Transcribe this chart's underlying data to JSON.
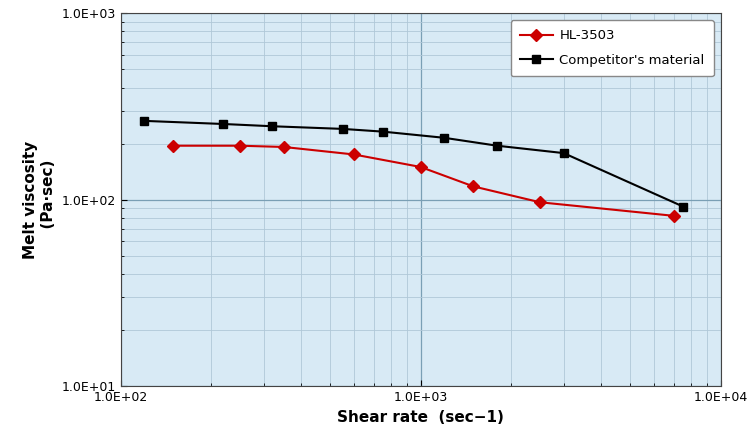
{
  "hl3503_x": [
    150,
    250,
    350,
    600,
    1000,
    1500,
    2500,
    7000
  ],
  "hl3503_y": [
    195,
    195,
    192,
    175,
    150,
    118,
    97,
    82
  ],
  "competitor_x": [
    120,
    220,
    320,
    550,
    750,
    1200,
    1800,
    3000,
    7500
  ],
  "competitor_y": [
    265,
    255,
    248,
    240,
    232,
    215,
    195,
    178,
    92
  ],
  "hl3503_color": "#cc0000",
  "competitor_color": "#000000",
  "background_color": "#d8eaf5",
  "outer_background": "#ffffff",
  "grid_minor_color": "#b0c8d8",
  "grid_major_color": "#7a9fb5",
  "xlabel_main": "Shear rate",
  "xlabel_unit": "  (sec−1)",
  "ylabel_main": "Melt viscosity",
  "ylabel_unit": "  (Pa·sec)",
  "xlim": [
    100,
    10000
  ],
  "ylim": [
    10,
    1000
  ],
  "legend_hl": "HL-3503",
  "legend_comp": "Competitor's material",
  "tick_label_size": 9,
  "axis_label_size": 11
}
